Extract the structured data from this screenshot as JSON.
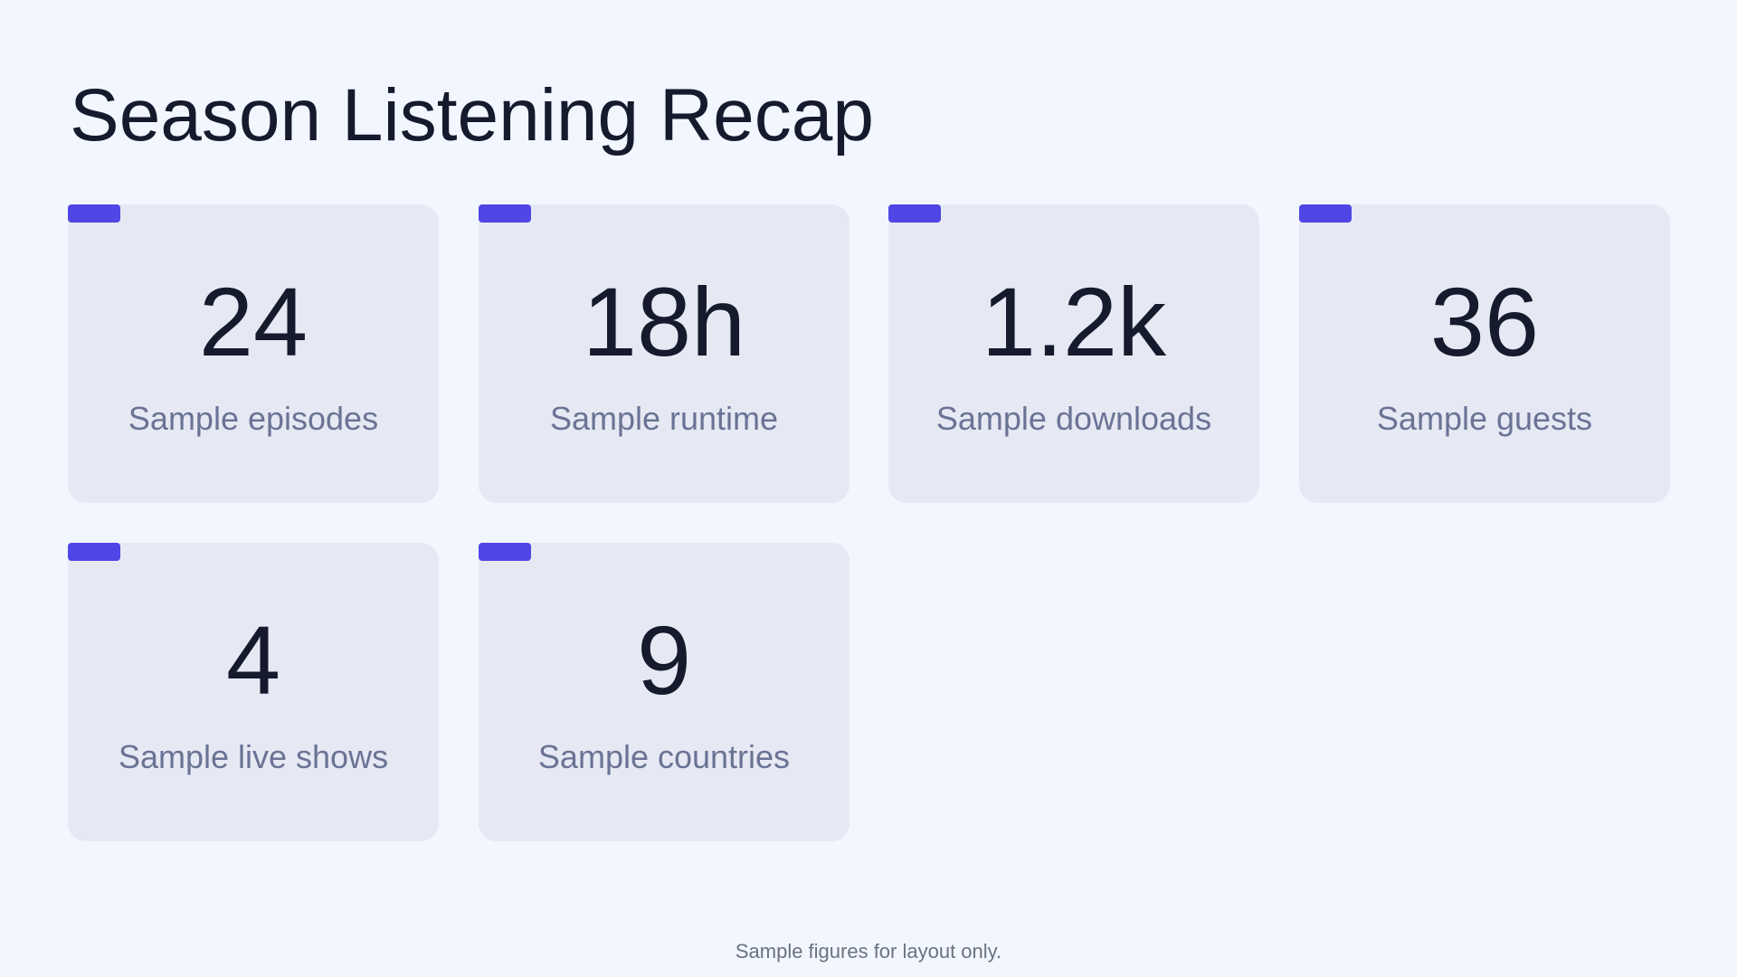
{
  "title": "Season Listening Recap",
  "cards": [
    {
      "value": "24",
      "label": "Sample episodes"
    },
    {
      "value": "18h",
      "label": "Sample runtime"
    },
    {
      "value": "1.2k",
      "label": "Sample downloads"
    },
    {
      "value": "36",
      "label": "Sample guests"
    },
    {
      "value": "4",
      "label": "Sample live shows"
    },
    {
      "value": "9",
      "label": "Sample countries"
    }
  ],
  "footnote": "Sample figures for layout only.",
  "colors": {
    "background": "#f2f6ff",
    "card": "#e6e9f3",
    "accent": "#4f46e5",
    "value_text": "#151a2d",
    "label_text": "#6b7395"
  }
}
